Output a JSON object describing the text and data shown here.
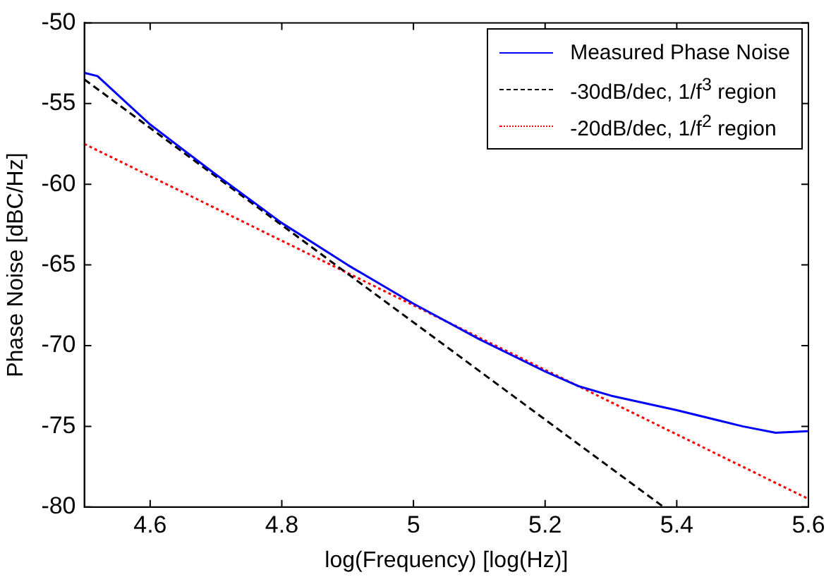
{
  "chart_data": {
    "type": "line",
    "xlabel": "log(Frequency) [log(Hz)]",
    "ylabel": "Phase Noise [dBC/Hz]",
    "xlim": [
      4.5,
      5.6
    ],
    "xticks": [
      4.6,
      4.8,
      5,
      5.2,
      5.4,
      5.6
    ],
    "ylim": [
      -80,
      -50
    ],
    "yticks": [
      -80,
      -75,
      -70,
      -65,
      -60,
      -55,
      -50
    ],
    "grid": false,
    "legend": "top right",
    "marker": "none",
    "series": [
      {
        "name": "Measured Phase Noise",
        "color": "#0000ff",
        "line_style": "solid",
        "x": [
          4.5,
          4.52,
          4.6,
          4.7,
          4.8,
          4.9,
          5.0,
          5.1,
          5.2,
          5.25,
          5.3,
          5.4,
          5.5,
          5.55,
          5.6
        ],
        "values": [
          -53.1,
          -53.3,
          -56.3,
          -59.4,
          -62.4,
          -65,
          -67.4,
          -69.6,
          -71.6,
          -72.5,
          -73.1,
          -74,
          -75,
          -75.4,
          -75.3
        ]
      },
      {
        "name": "-30dB/dec, 1/f$^{3}$ region",
        "color": "#000000",
        "line_style": "dashed",
        "x": [
          4.5,
          5.38
        ],
        "values": [
          -53.5,
          -80
        ]
      },
      {
        "name": "-20dB/dec, 1/f$^{2}$ region",
        "color": "#ff0000",
        "line_style": "dotted",
        "x": [
          4.5,
          5.6
        ],
        "values": [
          -57.5,
          -79.5
        ]
      }
    ]
  }
}
